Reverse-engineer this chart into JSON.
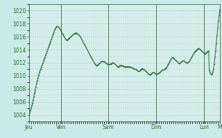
{
  "bg_color": "#c8eae8",
  "plot_bg_color": "#d8f0ee",
  "grid_color": "#b8d8d5",
  "line_color": "#2d6e2d",
  "marker_color": "#2d6e2d",
  "ylim": [
    1003,
    1021
  ],
  "yticks": [
    1004,
    1006,
    1008,
    1010,
    1012,
    1014,
    1016,
    1018,
    1020
  ],
  "day_labels": [
    "Jeu",
    "Ven",
    "Sam",
    "Dim",
    "Lun",
    "M"
  ],
  "day_fractions": [
    0.0,
    0.167,
    0.417,
    0.667,
    0.917,
    1.0
  ],
  "pressure_data": [
    1004.2,
    1004.4,
    1004.7,
    1005.0,
    1005.4,
    1005.8,
    1006.3,
    1006.8,
    1007.3,
    1007.8,
    1008.3,
    1008.8,
    1009.3,
    1009.7,
    1010.1,
    1010.5,
    1010.8,
    1011.1,
    1011.4,
    1011.7,
    1012.0,
    1012.3,
    1012.6,
    1012.9,
    1013.2,
    1013.5,
    1013.8,
    1014.1,
    1014.4,
    1014.7,
    1015.0,
    1015.3,
    1015.6,
    1015.9,
    1016.2,
    1016.5,
    1016.8,
    1017.1,
    1017.3,
    1017.5,
    1017.6,
    1017.6,
    1017.5,
    1017.4,
    1017.3,
    1017.1,
    1016.9,
    1016.7,
    1016.5,
    1016.3,
    1016.1,
    1015.9,
    1015.7,
    1015.6,
    1015.5,
    1015.5,
    1015.6,
    1015.7,
    1015.8,
    1015.9,
    1016.0,
    1016.1,
    1016.2,
    1016.3,
    1016.4,
    1016.5,
    1016.5,
    1016.6,
    1016.6,
    1016.5,
    1016.4,
    1016.3,
    1016.2,
    1016.1,
    1015.9,
    1015.7,
    1015.5,
    1015.3,
    1015.1,
    1014.9,
    1014.7,
    1014.5,
    1014.3,
    1014.1,
    1013.9,
    1013.7,
    1013.5,
    1013.3,
    1013.1,
    1012.9,
    1012.7,
    1012.5,
    1012.3,
    1012.1,
    1011.9,
    1011.8,
    1011.7,
    1011.6,
    1011.6,
    1011.7,
    1011.8,
    1011.9,
    1012.0,
    1012.1,
    1012.2,
    1012.2,
    1012.2,
    1012.2,
    1012.2,
    1012.1,
    1012.0,
    1011.9,
    1011.8,
    1011.8,
    1011.8,
    1011.8,
    1011.8,
    1011.8,
    1011.9,
    1012.0,
    1012.0,
    1012.0,
    1011.9,
    1011.8,
    1011.7,
    1011.6,
    1011.5,
    1011.4,
    1011.4,
    1011.5,
    1011.6,
    1011.6,
    1011.6,
    1011.6,
    1011.5,
    1011.5,
    1011.5,
    1011.4,
    1011.4,
    1011.4,
    1011.4,
    1011.4,
    1011.4,
    1011.4,
    1011.4,
    1011.4,
    1011.3,
    1011.3,
    1011.2,
    1011.2,
    1011.1,
    1011.1,
    1011.0,
    1011.0,
    1010.9,
    1010.8,
    1010.7,
    1010.7,
    1010.7,
    1010.8,
    1010.9,
    1011.0,
    1011.1,
    1011.1,
    1011.0,
    1010.9,
    1010.8,
    1010.7,
    1010.6,
    1010.5,
    1010.4,
    1010.3,
    1010.2,
    1010.2,
    1010.2,
    1010.3,
    1010.4,
    1010.5,
    1010.5,
    1010.5,
    1010.4,
    1010.3,
    1010.3,
    1010.3,
    1010.3,
    1010.4,
    1010.4,
    1010.5,
    1010.6,
    1010.7,
    1010.8,
    1010.9,
    1010.9,
    1010.9,
    1011.0,
    1011.1,
    1011.2,
    1011.3,
    1011.5,
    1011.7,
    1011.9,
    1012.1,
    1012.3,
    1012.5,
    1012.7,
    1012.8,
    1012.8,
    1012.7,
    1012.6,
    1012.5,
    1012.4,
    1012.3,
    1012.2,
    1012.1,
    1012.0,
    1011.9,
    1011.9,
    1012.0,
    1012.1,
    1012.2,
    1012.3,
    1012.3,
    1012.3,
    1012.2,
    1012.1,
    1012.0,
    1012.0,
    1012.0,
    1012.1,
    1012.2,
    1012.3,
    1012.5,
    1012.7,
    1012.9,
    1013.1,
    1013.3,
    1013.5,
    1013.7,
    1013.8,
    1013.9,
    1014.0,
    1014.1,
    1014.2,
    1014.2,
    1014.1,
    1014.0,
    1013.9,
    1013.8,
    1013.7,
    1013.6,
    1013.5,
    1013.4,
    1013.4,
    1013.5,
    1013.6,
    1013.7,
    1013.8,
    1013.8,
    1010.8,
    1010.5,
    1010.3,
    1010.2,
    1010.3,
    1010.6,
    1011.0,
    1011.8,
    1012.8,
    1013.8,
    1015.0,
    1016.2,
    1017.4,
    1018.5,
    1019.3,
    1020.2
  ]
}
